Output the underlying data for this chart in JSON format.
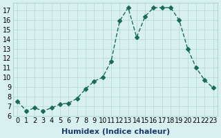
{
  "x": [
    0,
    1,
    2,
    3,
    4,
    5,
    6,
    7,
    8,
    9,
    10,
    11,
    12,
    13,
    14,
    15,
    16,
    17,
    18,
    19,
    20,
    21,
    22,
    23
  ],
  "y": [
    7.5,
    6.5,
    6.8,
    6.5,
    6.8,
    7.2,
    7.3,
    7.8,
    8.8,
    9.6,
    10.0,
    11.7,
    15.9,
    17.3,
    14.2,
    16.4,
    17.3,
    17.3,
    17.3,
    16.0,
    13.0,
    11.0,
    9.7,
    8.9
  ],
  "line_color": "#1a6b5a",
  "marker": "D",
  "marker_size": 3,
  "bg_color": "#d8f0ef",
  "grid_color": "#b0d8d5",
  "xlabel": "Humidex (Indice chaleur)",
  "ylabel": "",
  "title": "",
  "xlim": [
    -0.5,
    23.5
  ],
  "ylim": [
    6,
    17.8
  ],
  "yticks": [
    6,
    7,
    8,
    9,
    10,
    11,
    12,
    13,
    14,
    15,
    16,
    17
  ],
  "xticks": [
    0,
    1,
    2,
    3,
    4,
    5,
    6,
    7,
    8,
    9,
    10,
    11,
    12,
    13,
    14,
    15,
    16,
    17,
    18,
    19,
    20,
    21,
    22,
    23
  ],
  "xlabel_fontsize": 8,
  "tick_fontsize": 7
}
